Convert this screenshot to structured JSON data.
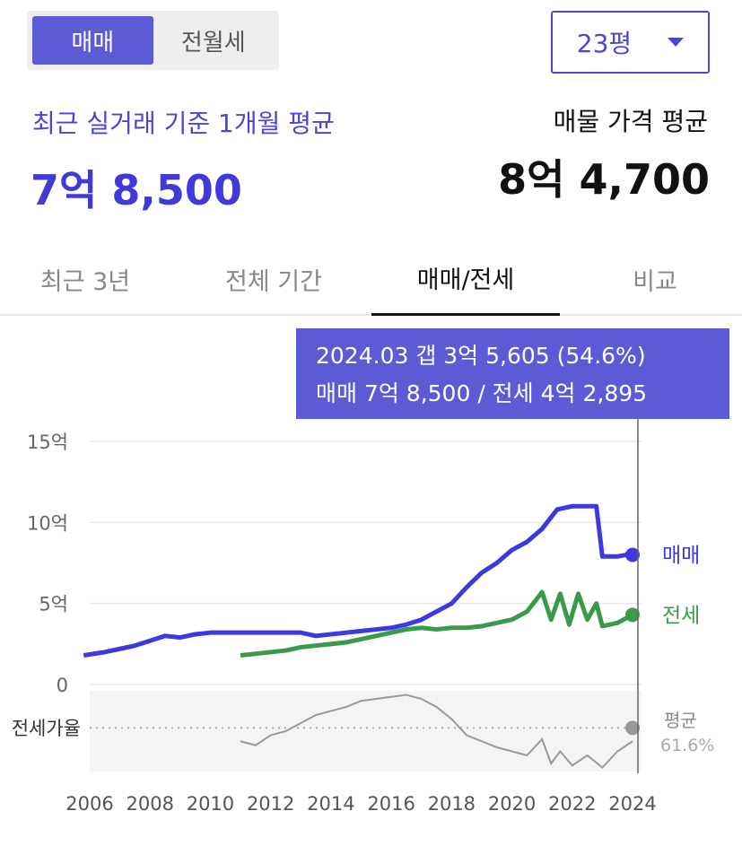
{
  "segment": {
    "tabs": [
      {
        "label": "매매",
        "active": true
      },
      {
        "label": "전월세",
        "active": false
      }
    ]
  },
  "size_select": {
    "value": "23평"
  },
  "recent": {
    "label": "최근 실거래 기준 1개월 평균",
    "value": "7억 8,500"
  },
  "listing": {
    "label": "매물 가격 평균",
    "value": "8억 4,700"
  },
  "period_tabs": [
    {
      "label": "최근 3년",
      "active": false
    },
    {
      "label": "전체 기간",
      "active": false
    },
    {
      "label": "매매/전세",
      "active": true
    },
    {
      "label": "비교",
      "active": false
    }
  ],
  "tooltip": {
    "line1": "2024.03  갭 3억 5,605 (54.6%)",
    "line2": "매매 7억 8,500 / 전세 4억 2,895"
  },
  "footer_note": "",
  "colors": {
    "accent": "#4b46d1",
    "sale_line": "#3d38e0",
    "jeonse_line": "#3a9a4a",
    "ratio_line": "#999999"
  },
  "chart_data": {
    "type": "line",
    "x_unit": "year",
    "x_ticks": [
      "2006",
      "2008",
      "2010",
      "2012",
      "2014",
      "2016",
      "2018",
      "2020",
      "2022",
      "2024"
    ],
    "y_ticks": [
      "15억",
      "10억",
      "5억",
      "0"
    ],
    "ylim": [
      0,
      15
    ],
    "ylabel_unit": "억",
    "series": [
      {
        "name": "매매",
        "color": "#3d38e0",
        "points": [
          [
            2005.8,
            1.8
          ],
          [
            2006.5,
            2.0
          ],
          [
            2007.0,
            2.2
          ],
          [
            2007.5,
            2.4
          ],
          [
            2008.0,
            2.7
          ],
          [
            2008.5,
            3.0
          ],
          [
            2009.0,
            2.9
          ],
          [
            2009.5,
            3.1
          ],
          [
            2010.0,
            3.2
          ],
          [
            2010.5,
            3.2
          ],
          [
            2011.0,
            3.2
          ],
          [
            2012.0,
            3.2
          ],
          [
            2013.0,
            3.2
          ],
          [
            2013.5,
            3.0
          ],
          [
            2014.0,
            3.1
          ],
          [
            2014.5,
            3.2
          ],
          [
            2015.0,
            3.3
          ],
          [
            2015.5,
            3.4
          ],
          [
            2016.0,
            3.5
          ],
          [
            2016.5,
            3.7
          ],
          [
            2017.0,
            4.0
          ],
          [
            2017.5,
            4.5
          ],
          [
            2018.0,
            5.0
          ],
          [
            2018.5,
            6.0
          ],
          [
            2019.0,
            6.9
          ],
          [
            2019.5,
            7.5
          ],
          [
            2020.0,
            8.3
          ],
          [
            2020.5,
            8.8
          ],
          [
            2021.0,
            9.6
          ],
          [
            2021.5,
            10.8
          ],
          [
            2022.0,
            11.0
          ],
          [
            2022.5,
            11.0
          ],
          [
            2022.8,
            11.0
          ],
          [
            2023.0,
            7.9
          ],
          [
            2023.5,
            7.9
          ],
          [
            2023.8,
            8.0
          ],
          [
            2024.0,
            8.0
          ]
        ],
        "end_label": "매매"
      },
      {
        "name": "전세",
        "color": "#3a9a4a",
        "points": [
          [
            2011.0,
            1.8
          ],
          [
            2011.5,
            1.9
          ],
          [
            2012.0,
            2.0
          ],
          [
            2012.5,
            2.1
          ],
          [
            2013.0,
            2.3
          ],
          [
            2013.5,
            2.4
          ],
          [
            2014.0,
            2.5
          ],
          [
            2014.5,
            2.6
          ],
          [
            2015.0,
            2.8
          ],
          [
            2015.5,
            3.0
          ],
          [
            2016.0,
            3.2
          ],
          [
            2016.5,
            3.4
          ],
          [
            2017.0,
            3.5
          ],
          [
            2017.5,
            3.4
          ],
          [
            2018.0,
            3.5
          ],
          [
            2018.5,
            3.5
          ],
          [
            2019.0,
            3.6
          ],
          [
            2019.5,
            3.8
          ],
          [
            2020.0,
            4.0
          ],
          [
            2020.5,
            4.5
          ],
          [
            2021.0,
            5.7
          ],
          [
            2021.3,
            4.0
          ],
          [
            2021.6,
            5.6
          ],
          [
            2021.9,
            3.7
          ],
          [
            2022.2,
            5.6
          ],
          [
            2022.5,
            4.0
          ],
          [
            2022.8,
            5.0
          ],
          [
            2023.0,
            3.6
          ],
          [
            2023.5,
            3.8
          ],
          [
            2024.0,
            4.3
          ]
        ],
        "end_label": "전세"
      }
    ],
    "ratio": {
      "label": "전세가율",
      "avg_label": "평균",
      "avg_value": "61.6%",
      "points": [
        [
          2011.0,
          55
        ],
        [
          2011.5,
          53
        ],
        [
          2012.0,
          58
        ],
        [
          2012.5,
          60
        ],
        [
          2013.0,
          64
        ],
        [
          2013.5,
          68
        ],
        [
          2014.0,
          70
        ],
        [
          2014.5,
          72
        ],
        [
          2015.0,
          75
        ],
        [
          2015.5,
          76
        ],
        [
          2016.0,
          77
        ],
        [
          2016.5,
          78
        ],
        [
          2017.0,
          76
        ],
        [
          2017.5,
          72
        ],
        [
          2018.0,
          66
        ],
        [
          2018.5,
          58
        ],
        [
          2019.0,
          55
        ],
        [
          2019.5,
          52
        ],
        [
          2020.0,
          50
        ],
        [
          2020.5,
          48
        ],
        [
          2021.0,
          56
        ],
        [
          2021.3,
          44
        ],
        [
          2021.6,
          50
        ],
        [
          2022.0,
          43
        ],
        [
          2022.5,
          48
        ],
        [
          2023.0,
          42
        ],
        [
          2023.5,
          50
        ],
        [
          2024.0,
          55
        ]
      ]
    }
  }
}
